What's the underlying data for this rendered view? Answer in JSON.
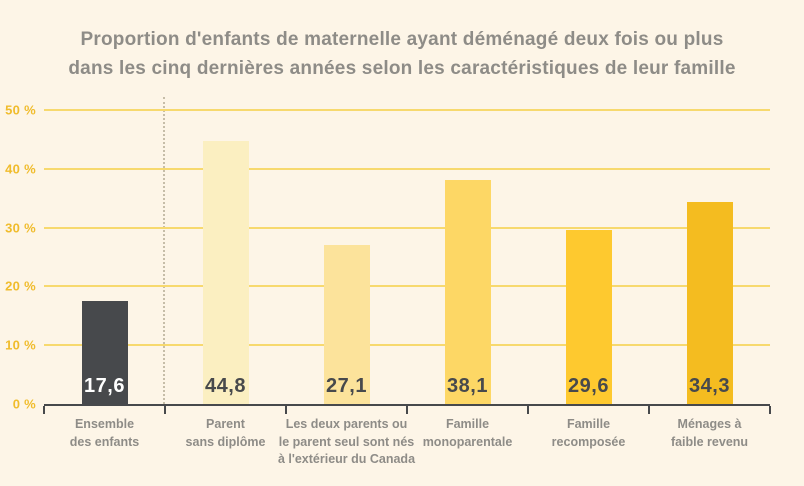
{
  "title": "Proportion d'enfants de maternelle ayant déménagé deux fois ou plus\ndans les cinq dernières années selon les caractéristiques de leur famille",
  "chart_data": {
    "type": "bar",
    "title": "Proportion d'enfants de maternelle ayant déménagé deux fois ou plus dans les cinq dernières années selon les caractéristiques de leur famille",
    "categories": [
      "Ensemble\ndes enfants",
      "Parent\nsans diplôme",
      "Les deux parents ou\nle parent seul sont nés\nà l'extérieur du Canada",
      "Famille\nmonoparentale",
      "Famille\nrecomposée",
      "Ménages à\nfaible revenu"
    ],
    "values": [
      17.6,
      44.8,
      27.1,
      38.1,
      29.6,
      34.3
    ],
    "value_labels": [
      "17,6",
      "44,8",
      "27,1",
      "38,1",
      "29,6",
      "34,3"
    ],
    "unit": "%",
    "ylim": [
      0,
      50
    ],
    "y_ticks": [
      "0 %",
      "10 %",
      "20 %",
      "30 %",
      "40 %",
      "50 %"
    ],
    "grid": true,
    "legend": false,
    "xlabel": "",
    "ylabel": "",
    "bar_colors": [
      "#47494C",
      "#FBEFC1",
      "#FCE39B",
      "#FDD765",
      "#FEC92F",
      "#F4BC20"
    ],
    "value_label_colors": [
      "#FFFFFF",
      "#47494C",
      "#47494C",
      "#47494C",
      "#47494C",
      "#47494C"
    ],
    "divider_after_category_index": 0
  },
  "colors": {
    "background": "#FDF5E7",
    "title_text": "#8E8C87",
    "axis": "#47494C",
    "gridline": "#F7D96E",
    "y_tick_text": "#F0BC2C",
    "category_text": "#8E8C87",
    "divider_dotted": "#C6BDA8"
  }
}
